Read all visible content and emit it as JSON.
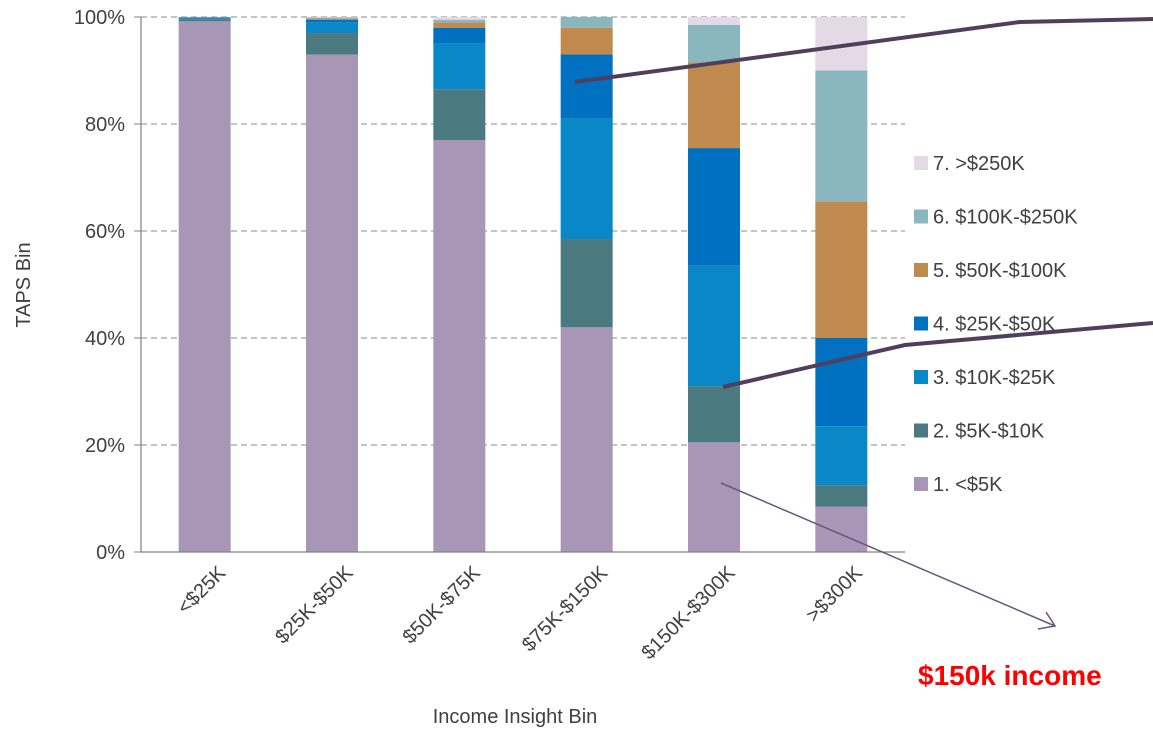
{
  "chart_data": {
    "type": "bar",
    "stacked": true,
    "ylabel": "TAPS Bin",
    "xlabel": "Income Insight Bin",
    "ylim": [
      0,
      100
    ],
    "yticks": [
      "0%",
      "20%",
      "40%",
      "60%",
      "80%",
      "100%"
    ],
    "grid": "horizontal dashed",
    "legend_position": "right",
    "categories": [
      "<$25K",
      "$25K-$50K",
      "$50K-$75K",
      "$75K-$150K",
      "$150K-$300K",
      ">$300K"
    ],
    "series": [
      {
        "name": "1. <$5K",
        "color": "#a896b6",
        "values": [
          99.2,
          93,
          77,
          42,
          20.5,
          8.5
        ]
      },
      {
        "name": "2. $5K-$10K",
        "color": "#4a7a80",
        "values": [
          0.4,
          4,
          9.5,
          16.5,
          10.5,
          4
        ]
      },
      {
        "name": "3. $10K-$25K",
        "color": "#0a87c6",
        "values": [
          0.2,
          2,
          8.5,
          22.5,
          22.5,
          11
        ]
      },
      {
        "name": "4. $25K-$50K",
        "color": "#0070c0",
        "values": [
          0.1,
          0.5,
          3,
          12,
          22,
          16.5
        ]
      },
      {
        "name": "5. $50K-$100K",
        "color": "#c0894e",
        "values": [
          0.05,
          0.2,
          1,
          5,
          16,
          25.5
        ]
      },
      {
        "name": "6. $100K-$250K",
        "color": "#8ab6bf",
        "values": [
          0.03,
          0.2,
          0.5,
          2,
          7,
          24.5
        ]
      },
      {
        "name": "7. >$250K",
        "color": "#e3dae6",
        "values": [
          0.02,
          0.1,
          0.5,
          0,
          1.5,
          10
        ]
      }
    ],
    "annotations": [
      "$150k income"
    ]
  }
}
